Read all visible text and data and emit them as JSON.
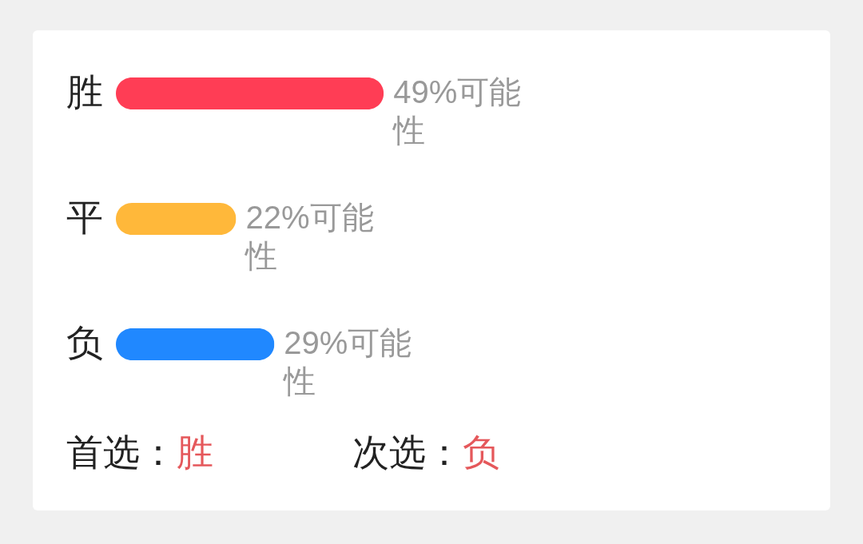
{
  "chart_data": {
    "type": "bar",
    "orientation": "horizontal",
    "categories": [
      "胜",
      "平",
      "负"
    ],
    "values": [
      49,
      22,
      29
    ],
    "colors": [
      "#ff3d55",
      "#ffb83a",
      "#2088ff"
    ],
    "value_labels": [
      "49%可能性",
      "22%可能性",
      "29%可能性"
    ],
    "tick_labels": "y",
    "annotations": [
      "首选：胜",
      "次选：负"
    ]
  }
}
